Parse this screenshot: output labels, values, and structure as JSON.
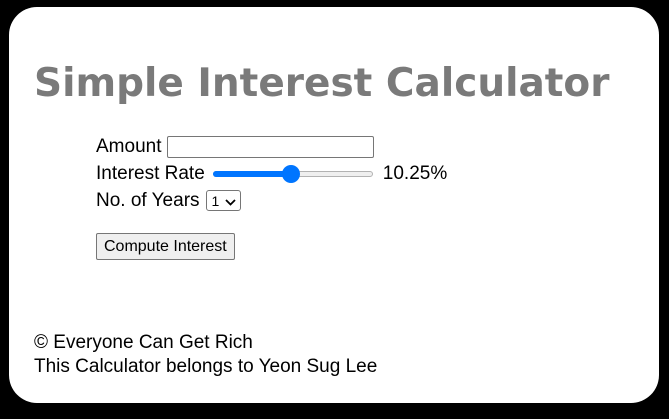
{
  "title": "Simple Interest Calculator",
  "form": {
    "amount_label": "Amount",
    "amount_value": "",
    "rate_label": "Interest Rate",
    "rate_value_text": "10.25%",
    "rate_slider_fraction": 0.49,
    "rate_accent_color": "#0075ff",
    "years_label": "No. of Years",
    "years_selected": "1",
    "compute_label": "Compute Interest"
  },
  "footer": {
    "copyright": "© Everyone Can Get Rich",
    "owner": "This Calculator belongs to Yeon Sug Lee"
  },
  "colors": {
    "title": "#7a7a7a",
    "background": "#000000",
    "card": "#ffffff"
  },
  "icons": {
    "select_arrow": "chevron-down-icon"
  }
}
